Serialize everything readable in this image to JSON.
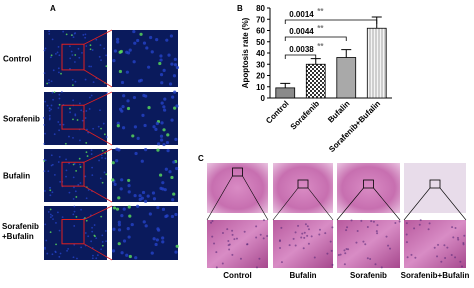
{
  "panels": {
    "a": {
      "label": "A",
      "rows": [
        "Control",
        "Sorafenib",
        "Bufalin",
        [
          "Sorafenib",
          "+Bufalin"
        ]
      ]
    },
    "c": {
      "label": "C",
      "columns": [
        "Control",
        "Bufalin",
        "Sorafenib",
        "Sorafenib+Bufalin"
      ]
    }
  },
  "chart_data": {
    "type": "bar",
    "panel_label": "B",
    "y_label": "Apoptosis rate (%)",
    "categories": [
      "Control",
      "Sorafenib",
      "Bufalin",
      "Sorafenib+Bufalin"
    ],
    "values": [
      9,
      30,
      36,
      62
    ],
    "errors": [
      4,
      5,
      7,
      10
    ],
    "colors": [
      "#8a8a8a",
      "#ffffff",
      "#a9a9a9",
      "#f2f2f2"
    ],
    "patterns": [
      "solid",
      "checker",
      "solid",
      "vertical-lines"
    ],
    "ylim": [
      0,
      80
    ],
    "yticks": [
      0,
      10,
      20,
      30,
      40,
      50,
      60,
      70,
      80
    ],
    "annotations": [
      {
        "text": "0.0038",
        "stars": "**"
      },
      {
        "text": "0.0044",
        "stars": "**"
      },
      {
        "text": "0.0014",
        "stars": "**"
      }
    ]
  }
}
